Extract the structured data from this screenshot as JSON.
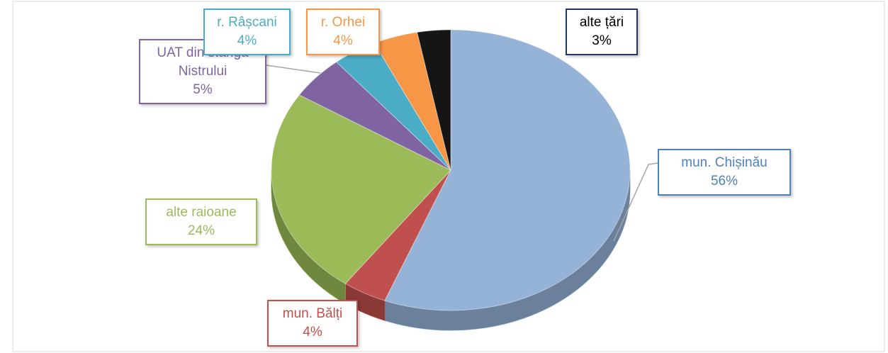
{
  "chart_data": {
    "type": "pie",
    "categories": [
      "mun. Chișinău",
      "mun. Bălți",
      "alte raioane",
      "UAT din stânga Nistrului",
      "r. Râșcani",
      "r. Orhei",
      "alte țări"
    ],
    "values": [
      56,
      4,
      24,
      5,
      4,
      4,
      3
    ],
    "value_labels": [
      "56%",
      "4%",
      "24%",
      "5%",
      "4%",
      "4%",
      "3%"
    ],
    "colors": [
      "#95b3d7",
      "#c0504d",
      "#9bbb59",
      "#8064a2",
      "#4bacc6",
      "#f79646",
      "#151515"
    ],
    "label_colors": [
      "#4f81bd",
      "#c0504d",
      "#9bbb59",
      "#8064a2",
      "#4bacc6",
      "#f79646",
      "#000000"
    ]
  }
}
